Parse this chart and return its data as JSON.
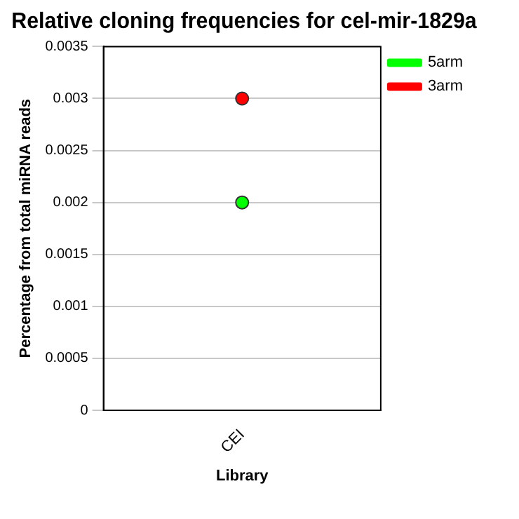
{
  "chart_data": {
    "type": "line",
    "title": "Relative cloning frequencies for cel-mir-1829a",
    "xlabel": "Library",
    "ylabel": "Percentage from total miRNA reads",
    "categories": [
      "CEI"
    ],
    "series": [
      {
        "name": "5arm",
        "color": "#00ff00",
        "values": [
          0.002
        ]
      },
      {
        "name": "3arm",
        "color": "#ff0000",
        "values": [
          0.003
        ]
      }
    ],
    "ylim": [
      0,
      0.0035
    ],
    "yticks": [
      0,
      0.0005,
      0.001,
      0.0015,
      0.002,
      0.0025,
      0.003,
      0.0035
    ],
    "grid": "y",
    "legend": "top right",
    "marker": "circle"
  }
}
